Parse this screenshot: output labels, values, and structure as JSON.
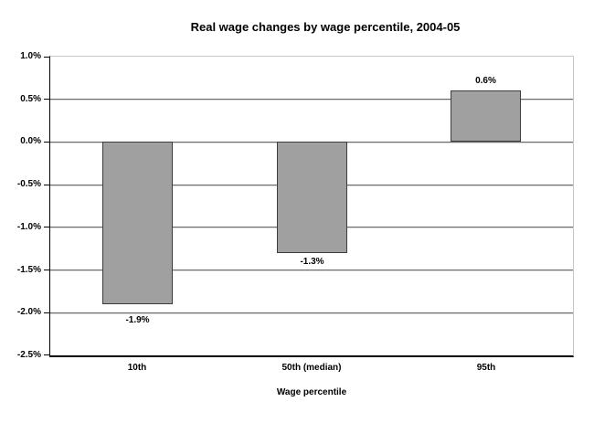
{
  "chart_data": {
    "type": "bar",
    "title": "Real wage changes by wage percentile, 2004-05",
    "categories": [
      "10th",
      "50th (median)",
      "95th"
    ],
    "values": [
      -1.9,
      -1.3,
      0.6
    ],
    "bar_labels": [
      "-1.9%",
      "-1.3%",
      "0.6%"
    ],
    "xlabel": "Wage percentile",
    "ylabel": "",
    "ylim": [
      -2.5,
      1.0
    ],
    "ytick_step": 0.5,
    "ytick_labels": [
      "1.0%",
      "0.5%",
      "0.0%",
      "-0.5%",
      "-1.0%",
      "-1.5%",
      "-2.0%",
      "-2.5%"
    ],
    "grid": true,
    "legend": false
  },
  "colors": {
    "background": "#ffffff",
    "text": "#000000",
    "axis": "#000000",
    "plot_border": "#c6c6c6",
    "gridline": "#6b6b6b",
    "gridline_shadow": "#d8d8d8",
    "bar_fill": "#a0a0a0",
    "bar_border": "#3c3c3c"
  }
}
